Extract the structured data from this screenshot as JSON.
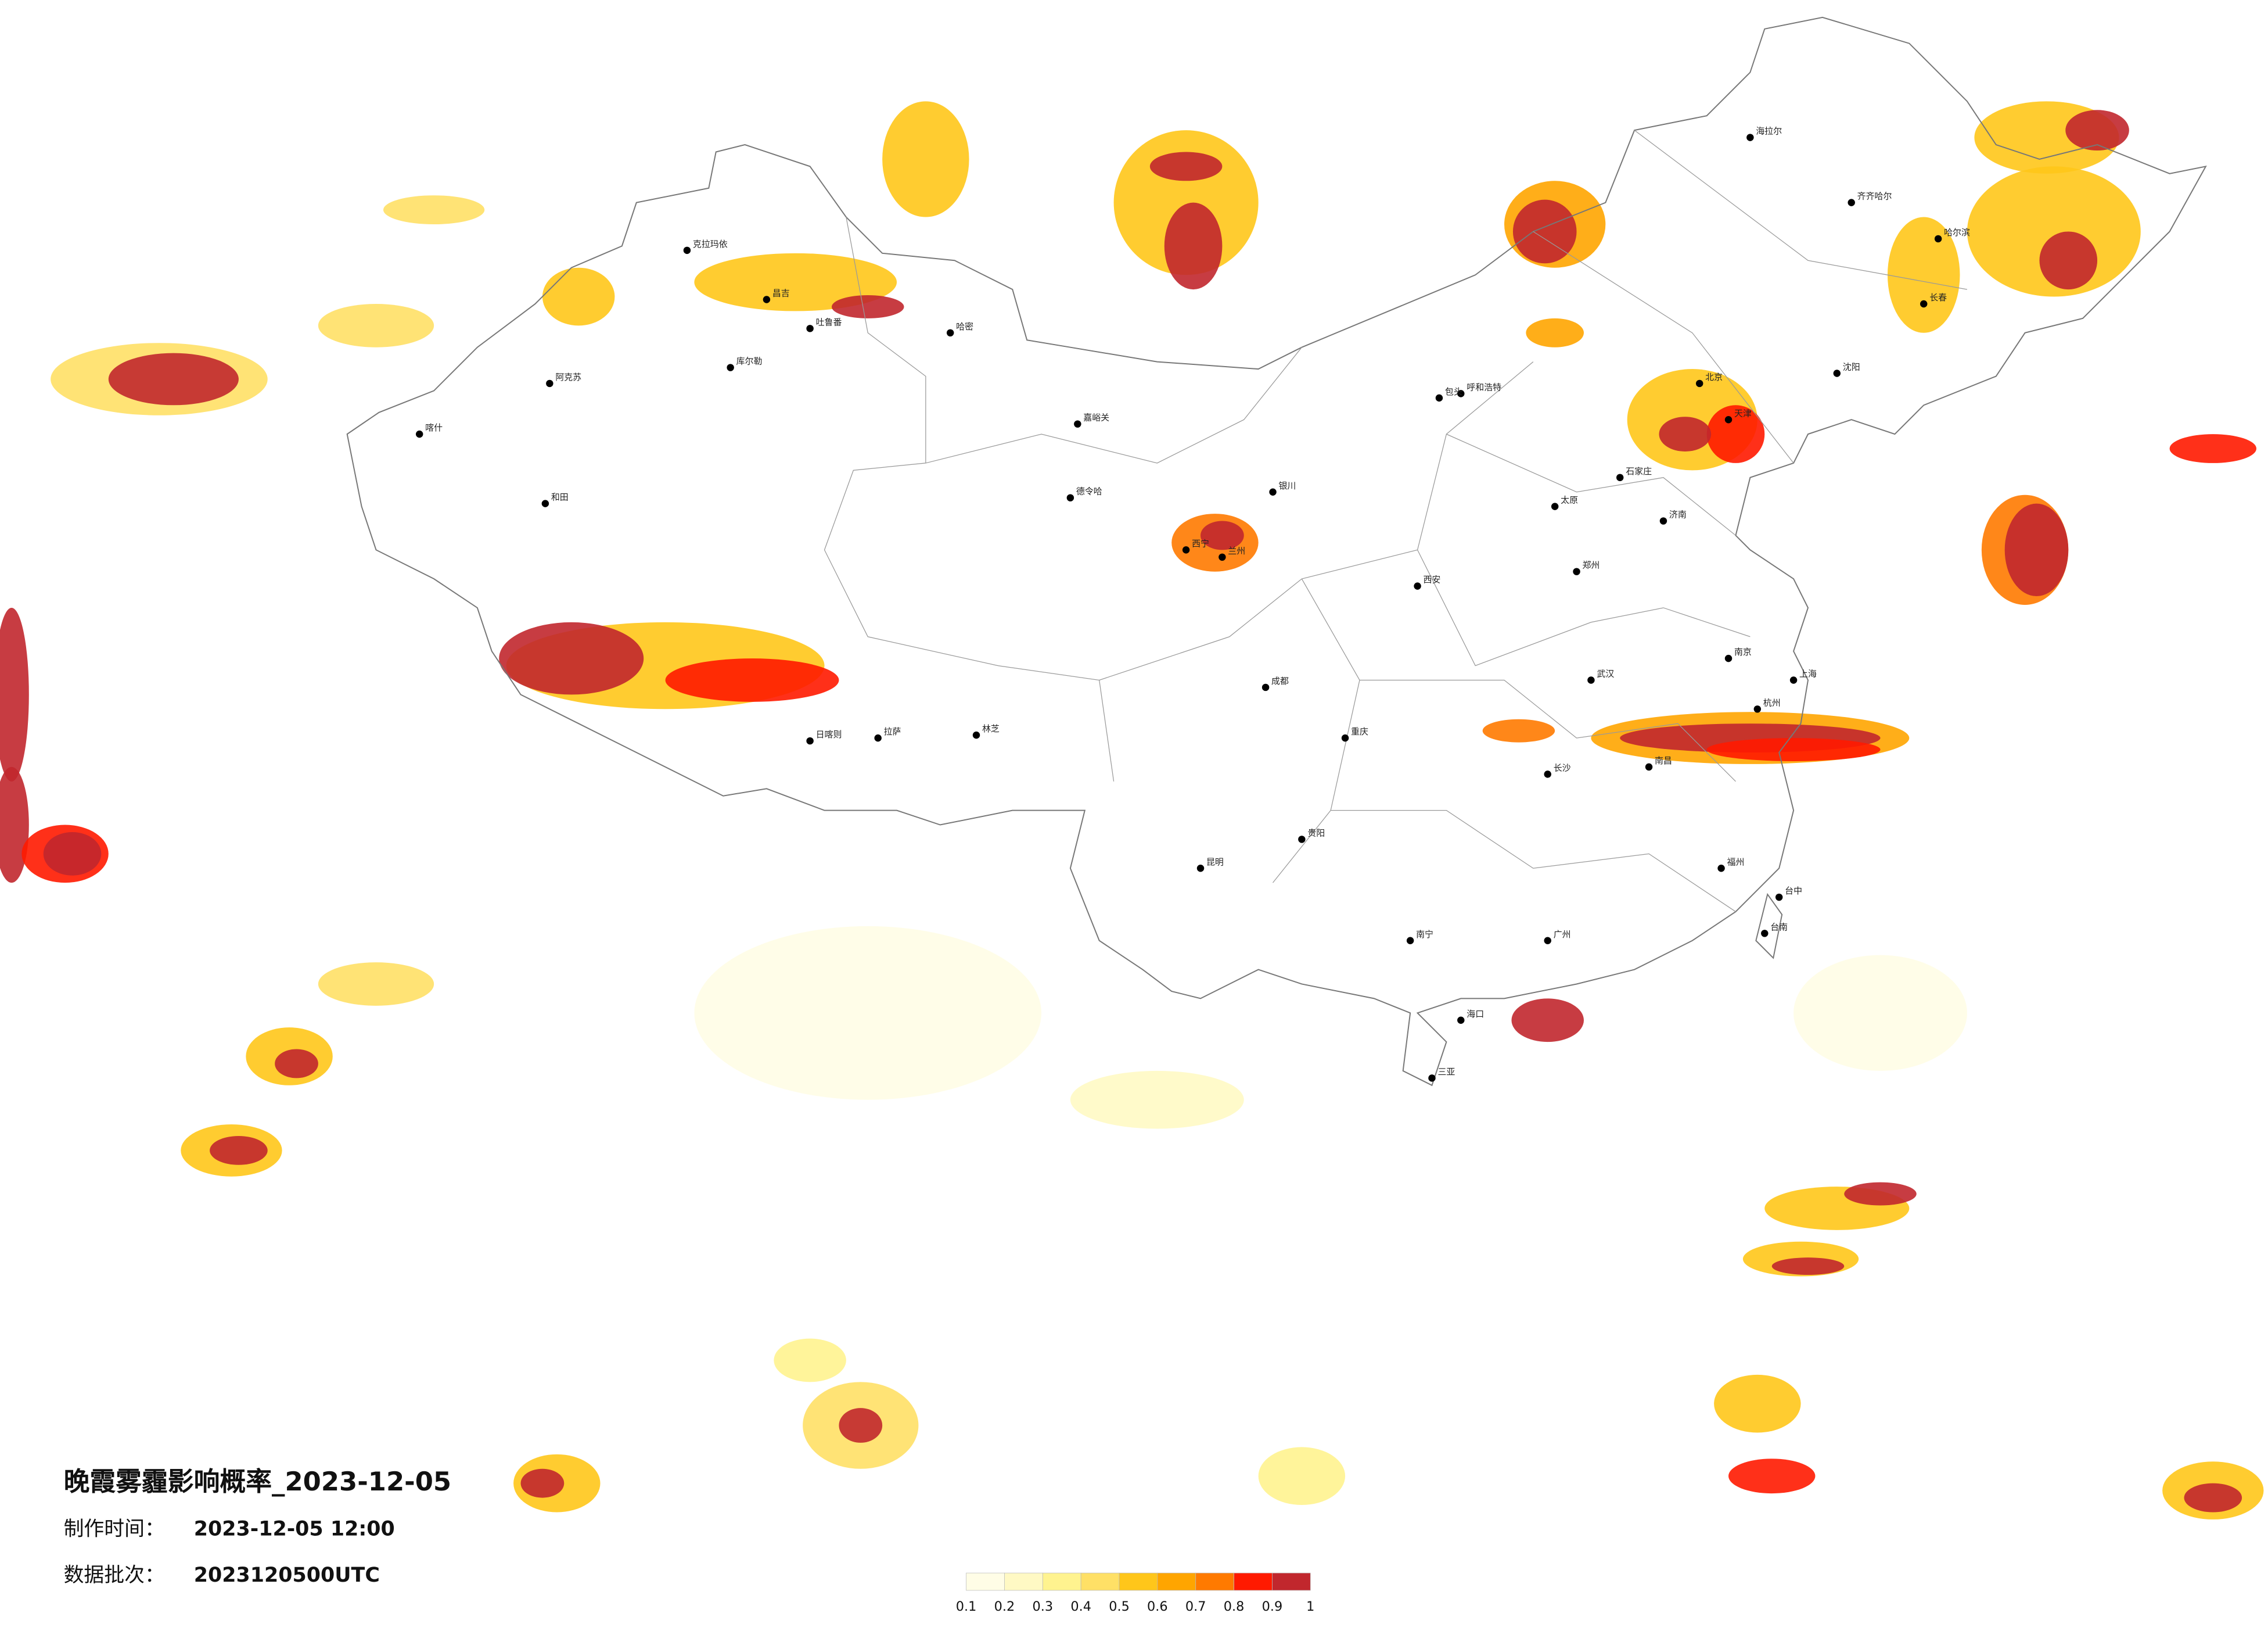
{
  "title": "晚霞雾霾影响概率_2023-12-05",
  "production": {
    "label": "制作时间：",
    "value": "2023-12-05 12:00"
  },
  "batch": {
    "label": "数据批次：",
    "value": "2023120500UTC"
  },
  "legend": {
    "colors": [
      "#fffde6",
      "#fff9c4",
      "#fff38f",
      "#ffe066",
      "#ffc61a",
      "#ffa500",
      "#ff7a00",
      "#ff1a00",
      "#c1272d"
    ],
    "ticks": [
      0.1,
      0.2,
      0.3,
      0.4,
      0.5,
      0.6,
      0.7,
      0.8,
      0.9,
      1
    ]
  },
  "cities": [
    "阿克苏",
    "喀什",
    "和田",
    "克拉玛依",
    "库尔勒",
    "哈密",
    "吐鲁番",
    "昌吉",
    "拉萨",
    "日喀则",
    "林芝",
    "嘉峪关",
    "德令哈",
    "西宁",
    "兰州",
    "银川",
    "呼和浩特",
    "包头",
    "海拉尔",
    "齐齐哈尔",
    "哈尔滨",
    "长春",
    "沈阳",
    "北京",
    "天津",
    "石家庄",
    "太原",
    "济南",
    "郑州",
    "西安",
    "成都",
    "重庆",
    "武汉",
    "南京",
    "上海",
    "杭州",
    "长沙",
    "南昌",
    "福州",
    "贵阳",
    "昆明",
    "南宁",
    "广州",
    "海口",
    "三亚",
    "台中",
    "台南"
  ]
}
